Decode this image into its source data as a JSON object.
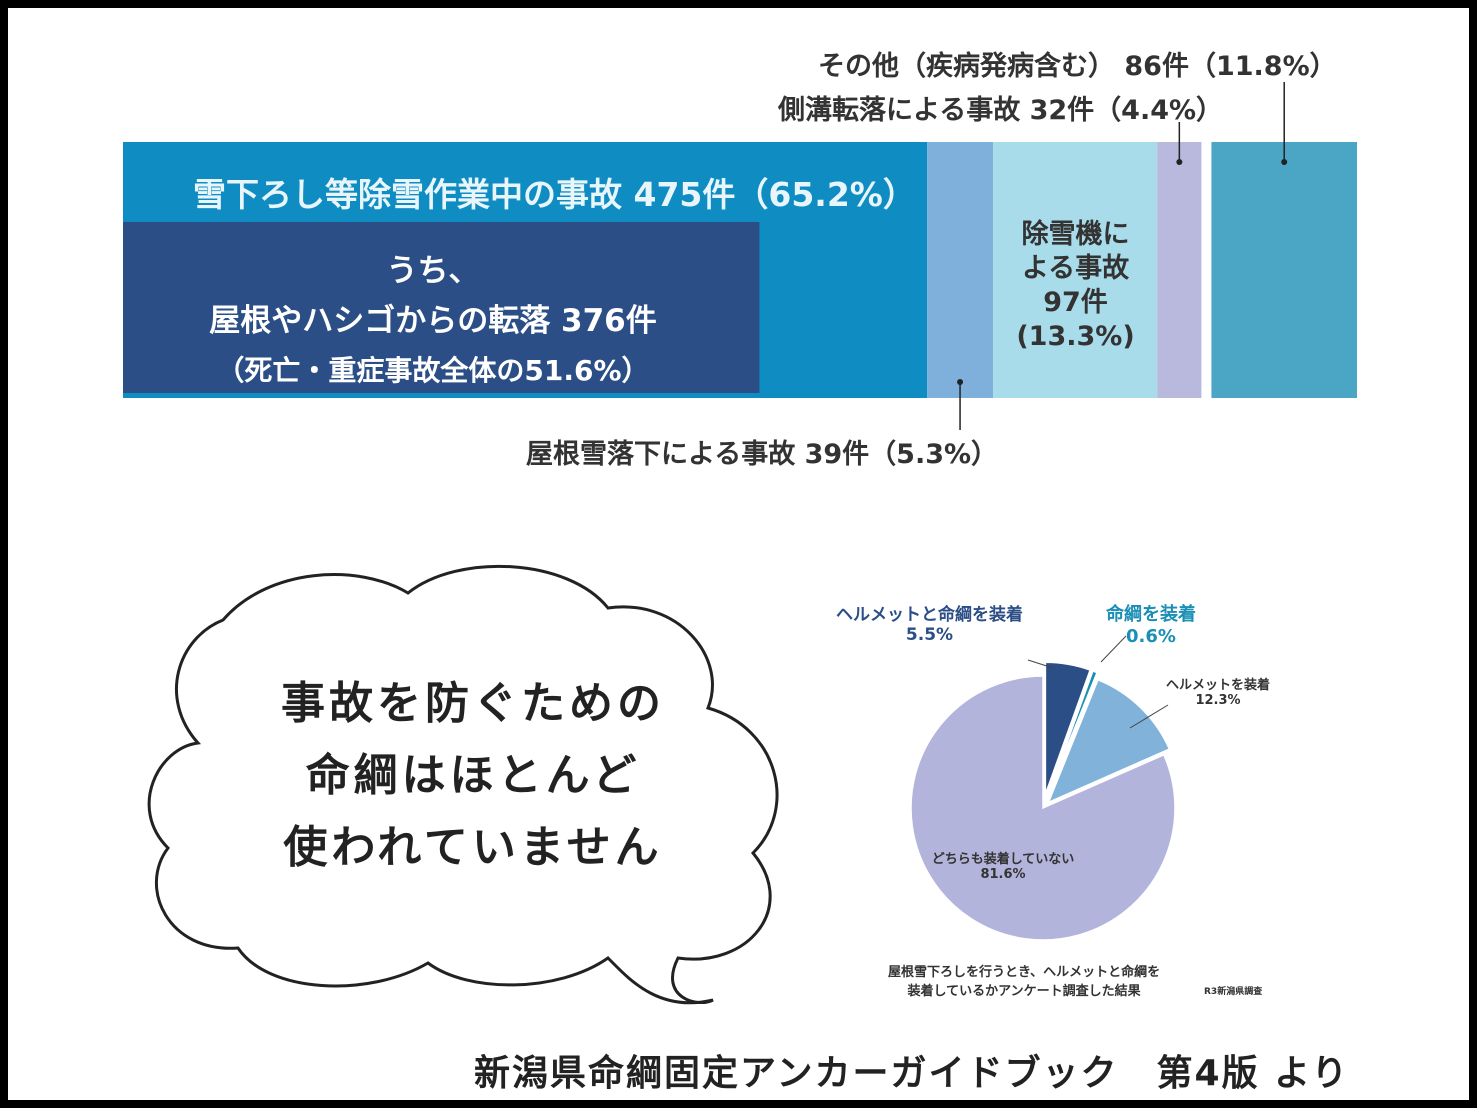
{
  "chart_data": [
    {
      "type": "bar",
      "orientation": "stacked-horizontal-100",
      "categories": [
        "雪下ろし等除雪作業中の事故",
        "屋根雪落下による事故",
        "除雪機による事故",
        "側溝転落による事故",
        "その他（疾病発病含む）"
      ],
      "values": [
        475,
        39,
        97,
        32,
        86
      ],
      "percents": [
        65.2,
        5.3,
        13.3,
        4.4,
        11.8
      ],
      "colors": [
        "#0f8dc3",
        "#7fb0dc",
        "#a9dcea",
        "#b9b8dd",
        "#4aa6c4"
      ],
      "labels": [
        "雪下ろし等除雪作業中の事故 475件（65.2%）",
        "屋根雪落下による事故 39件（5.3%）",
        "除雪機による事故 97件（13.3%）",
        "側溝転落による事故 32件（4.4%）",
        "その他（疾病発病含む） 86件（11.8%）"
      ],
      "machine_label_lines": [
        "除雪機に",
        "よる事故",
        "97件",
        "(13.3%)"
      ],
      "subset": {
        "parent": "雪下ろし等除雪作業中の事故",
        "value": 376,
        "color": "#2b4e86",
        "label_lines": [
          "うち、",
          "屋根やハシゴからの転落 376件",
          "（死亡・重症事故全体の51.6%）"
        ]
      }
    },
    {
      "type": "pie",
      "categories": [
        "ヘルメットと命綱を装着",
        "命綱を装着",
        "ヘルメットを装着",
        "どちらも装着していない"
      ],
      "values": [
        5.5,
        0.6,
        12.3,
        81.6
      ],
      "value_labels": [
        "5.5%",
        "0.6%",
        "12.3%",
        "81.6%"
      ],
      "colors": [
        "#2b4e86",
        "#1a8fb5",
        "#80b2da",
        "#b3b4dc"
      ],
      "label_colors": [
        "#2b4e86",
        "#1a8fb5",
        "#333333",
        "#333333"
      ],
      "caption_lines": [
        "屋根雪下ろしを行うとき、ヘルメットと命綱を",
        "装着しているかアンケート調査した結果"
      ],
      "source": "R3新潟県調査"
    }
  ],
  "bubble": {
    "lines": [
      "事故を防ぐための",
      "命綱はほとんど",
      "使われていません"
    ]
  },
  "footer": "新潟県命綱固定アンカーガイドブック　第4版 より"
}
